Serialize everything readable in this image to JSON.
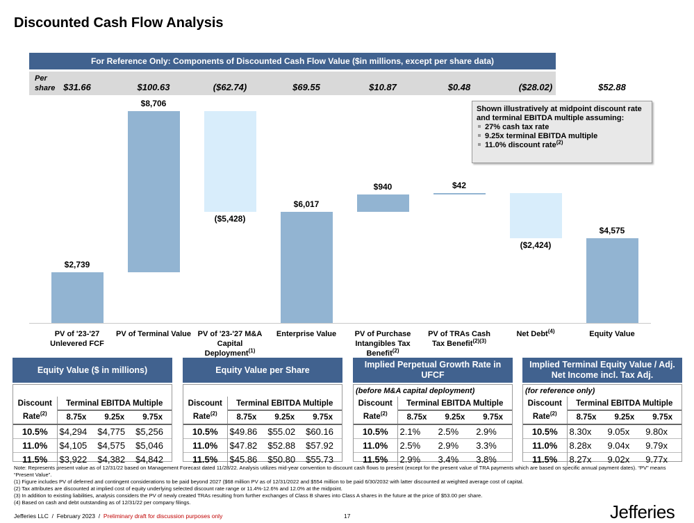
{
  "title": "Discounted Cash Flow Analysis",
  "chart_data": {
    "type": "waterfall",
    "title": "For Reference Only: Components of Discounted Cash Flow Value ($in millions, except per share data)",
    "categories": [
      "PV of '23-'27 Unlevered FCF",
      "PV of Terminal Value",
      "PV of '23-'27 M&A Capital Deployment",
      "Enterprise Value",
      "PV of Purchase Intangibles Tax Benefit",
      "PV of TRAs Cash Tax Benefit",
      "Net Debt",
      "Equity Value"
    ],
    "category_notes": [
      null,
      null,
      "(1)",
      null,
      "(2)",
      "(2)(3)",
      "(4)",
      null
    ],
    "values": [
      2739,
      8706,
      -5428,
      6017,
      940,
      42,
      -2424,
      4575
    ],
    "value_labels": [
      "$2,739",
      "$8,706",
      "($5,428)",
      "$6,017",
      "$940",
      "$42",
      "($2,424)",
      "$4,575"
    ],
    "colors": {
      "positive": "#92b4d2",
      "negative": "#d8edfb"
    },
    "per_share_label": "Per share",
    "per_share": [
      "$31.66",
      "$100.63",
      "($62.74)",
      "$69.55",
      "$10.87",
      "$0.48",
      "($28.02)",
      "$52.88"
    ]
  },
  "callout": {
    "intro": "Shown illustratively at midpoint discount rate and terminal EBITDA multiple assuming:",
    "bullets": [
      "27% cash tax rate",
      "9.25x terminal EBITDA multiple",
      "11.0% discount rate"
    ],
    "bullet_notes": [
      null,
      null,
      "(2)"
    ]
  },
  "tables": [
    {
      "title": "Equity Value ($ in millions)",
      "subtitle": null,
      "row_head": [
        "Discount",
        "Rate"
      ],
      "row_note": "(2)",
      "group": "Terminal EBITDA Multiple",
      "columns": [
        "8.75x",
        "9.25x",
        "9.75x"
      ],
      "rows": [
        [
          "10.5%",
          "$4,294",
          "$4,775",
          "$5,256"
        ],
        [
          "11.0%",
          "$4,105",
          "$4,575",
          "$5,046"
        ],
        [
          "11.5%",
          "$3,922",
          "$4,382",
          "$4,842"
        ]
      ]
    },
    {
      "title": "Equity Value per Share",
      "subtitle": null,
      "row_head": [
        "Discount",
        "Rate"
      ],
      "row_note": "(2)",
      "group": "Terminal EBITDA Multiple",
      "columns": [
        "8.75x",
        "9.25x",
        "9.75x"
      ],
      "rows": [
        [
          "10.5%",
          "$49.86",
          "$55.02",
          "$60.16"
        ],
        [
          "11.0%",
          "$47.82",
          "$52.88",
          "$57.92"
        ],
        [
          "11.5%",
          "$45.86",
          "$50.80",
          "$55.73"
        ]
      ]
    },
    {
      "title": "Implied Perpetual Growth Rate in UFCF",
      "subtitle": "(before M&A capital deployment)",
      "row_head": [
        "Discount",
        "Rate"
      ],
      "row_note": "(2)",
      "group": "Terminal EBITDA Multiple",
      "columns": [
        "8.75x",
        "9.25x",
        "9.75x"
      ],
      "rows": [
        [
          "10.5%",
          "2.1%",
          "2.5%",
          "2.9%"
        ],
        [
          "11.0%",
          "2.5%",
          "2.9%",
          "3.3%"
        ],
        [
          "11.5%",
          "2.9%",
          "3.4%",
          "3.8%"
        ]
      ]
    },
    {
      "title": "Implied Terminal Equity Value / Adj. Net Income incl. Tax Adj.",
      "subtitle": "(for reference only)",
      "row_head": [
        "Discount",
        "Rate"
      ],
      "row_note": "(2)",
      "group": "Terminal EBITDA Multiple",
      "columns": [
        "8.75x",
        "9.25x",
        "9.75x"
      ],
      "rows": [
        [
          "10.5%",
          "8.30x",
          "9.05x",
          "9.80x"
        ],
        [
          "11.0%",
          "8.28x",
          "9.04x",
          "9.79x"
        ],
        [
          "11.5%",
          "8.27x",
          "9.02x",
          "9.77x"
        ]
      ]
    }
  ],
  "notes": [
    "Note: Represents present value as of 12/31/22 based on Management Forecast dated 11/28/22.  Analysis utilizes mid-year convention to discount cash flows to present (except for the present value of TRA payments which are based on specific annual payment dates). “PV” means “Present Value”.",
    "(1)    Figure includes PV of deferred and contingent considerations to be paid beyond 2027 ($68 million PV as of 12/31/2022 and $554 million to be paid 6/30/2032 with latter discounted at weighted average cost of capital.",
    "(2)    Tax attributes are discounted at implied cost of equity underlying selected discount rate range or 11.4%-12.6% and 12.0% at the midpoint.",
    "(3)    In addition to existing liabilities, analysis considers the PV of newly created TRAs resulting from further exchanges of Class B shares into Class A shares in the future at the price of $53.00 per share.",
    "(4)    Based on cash and debt outstanding as of 12/31/22 per company filings."
  ],
  "footer": {
    "left": "Jefferies LLC  /  February 2023  /  ",
    "draft": "Preliminary draft for discussion purposes only",
    "page": "17",
    "logo": "Jefferies"
  }
}
